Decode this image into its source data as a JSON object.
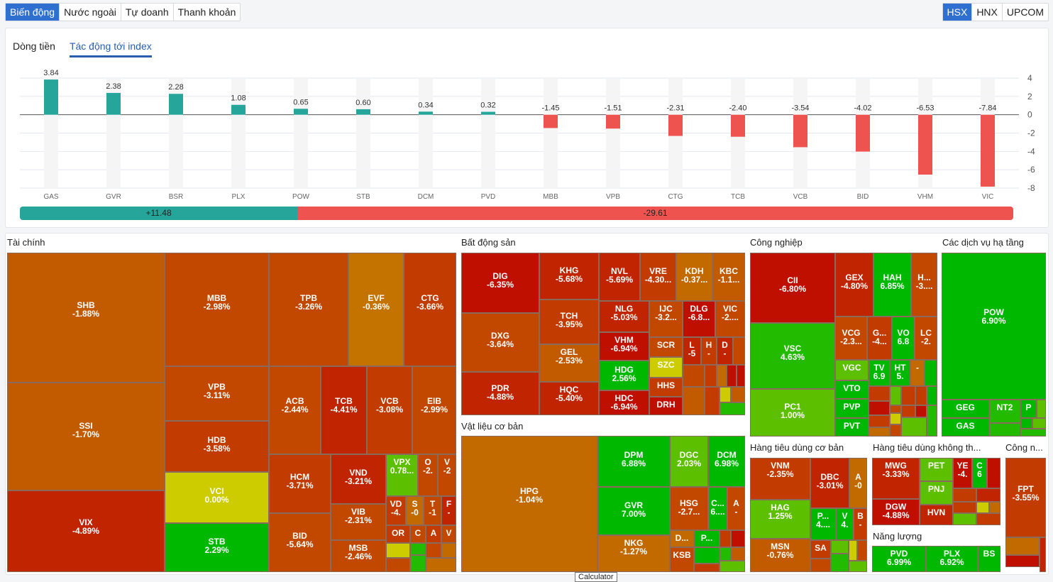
{
  "top_tabs": [
    {
      "label": "Biến động",
      "active": true
    },
    {
      "label": "Nước ngoài",
      "active": false
    },
    {
      "label": "Tự doanh",
      "active": false
    },
    {
      "label": "Thanh khoản",
      "active": false
    }
  ],
  "exchange_tabs": [
    {
      "label": "HSX",
      "active": true
    },
    {
      "label": "HNX",
      "active": false
    },
    {
      "label": "UPCOM",
      "active": false
    }
  ],
  "sub_tabs": [
    {
      "label": "Dòng tiền",
      "active": false
    },
    {
      "label": "Tác động tới index",
      "active": true
    }
  ],
  "colors": {
    "positive": "#26a69a",
    "negative": "#ef5350",
    "accent": "#2f6fd0"
  },
  "chart_data": {
    "type": "bar",
    "title": "Tác động tới index",
    "categories": [
      "GAS",
      "GVR",
      "BSR",
      "PLX",
      "POW",
      "STB",
      "DCM",
      "PVD",
      "MBB",
      "VPB",
      "CTG",
      "TCB",
      "VCB",
      "BID",
      "VHM",
      "VIC"
    ],
    "values": [
      3.84,
      2.38,
      2.28,
      1.08,
      0.65,
      0.6,
      0.34,
      0.32,
      -1.45,
      -1.51,
      -2.31,
      -2.4,
      -3.54,
      -4.02,
      -6.53,
      -7.84
    ],
    "value_labels": [
      "3.84",
      "2.38",
      "2.28",
      "1.08",
      "0.65",
      "0.60",
      "0.34",
      "0.32",
      "-1.45",
      "-1.51",
      "-2.31",
      "-2.40",
      "-3.54",
      "-4.02",
      "-6.53",
      "-7.84"
    ],
    "ylim": [
      -8,
      4
    ],
    "yticks": [
      "4",
      "2",
      "0",
      "-2",
      "-4",
      "-6",
      "-8"
    ],
    "ytick_values": [
      4,
      2,
      0,
      -2,
      -4,
      -6,
      -8
    ],
    "grid": true,
    "y_axis_side": "right"
  },
  "summary": {
    "positive": "+11.48",
    "negative": "-29.61",
    "positive_value": 11.48,
    "negative_value": -29.61
  },
  "sectors": [
    {
      "name": "Tài chính"
    },
    {
      "name": "Bất động sản"
    },
    {
      "name": "Vật liệu cơ bản"
    },
    {
      "name": "Công nghiệp"
    },
    {
      "name": "Các dịch vụ hạ tầng"
    },
    {
      "name": "Hàng tiêu dùng cơ bản"
    },
    {
      "name": "Hàng tiêu dùng không th..."
    },
    {
      "name": "Năng lượng"
    },
    {
      "name": "Công n..."
    }
  ],
  "tiles": [
    {
      "s": "SHB",
      "p": "-1.88%"
    },
    {
      "s": "SSI",
      "p": "-1.70%"
    },
    {
      "s": "VIX",
      "p": "-4.89%"
    },
    {
      "s": "MBB",
      "p": "-2.98%"
    },
    {
      "s": "VPB",
      "p": "-3.11%"
    },
    {
      "s": "HDB",
      "p": "-3.58%"
    },
    {
      "s": "VCI",
      "p": "0.00%"
    },
    {
      "s": "STB",
      "p": "2.29%"
    },
    {
      "s": "TPB",
      "p": "-3.26%"
    },
    {
      "s": "EVF",
      "p": "-0.36%"
    },
    {
      "s": "CTG",
      "p": "-3.66%"
    },
    {
      "s": "ACB",
      "p": "-2.44%"
    },
    {
      "s": "TCB",
      "p": "-4.41%"
    },
    {
      "s": "VCB",
      "p": "-3.08%"
    },
    {
      "s": "EIB",
      "p": "-2.99%"
    },
    {
      "s": "HCM",
      "p": "-3.71%"
    },
    {
      "s": "VND",
      "p": "-3.21%"
    },
    {
      "s": "BID",
      "p": "-5.64%"
    },
    {
      "s": "VIB",
      "p": "-2.31%"
    },
    {
      "s": "MSB",
      "p": "-2.46%"
    },
    {
      "s": "VPX",
      "p": "0.78..."
    },
    {
      "s": "O",
      "p": "-2."
    },
    {
      "s": "V",
      "p": "-2"
    },
    {
      "s": "VD",
      "p": "-4."
    },
    {
      "s": "S",
      "p": "-0"
    },
    {
      "s": "T",
      "p": "-1"
    },
    {
      "s": "F",
      "p": "-"
    },
    {
      "s": "OR",
      "p": ""
    },
    {
      "s": "C",
      "p": ""
    },
    {
      "s": "A",
      "p": ""
    },
    {
      "s": "V",
      "p": ""
    },
    {
      "s": "DIG",
      "p": "-6.35%"
    },
    {
      "s": "DXG",
      "p": "-3.64%"
    },
    {
      "s": "PDR",
      "p": "-4.88%"
    },
    {
      "s": "KHG",
      "p": "-5.68%"
    },
    {
      "s": "TCH",
      "p": "-3.95%"
    },
    {
      "s": "GEL",
      "p": "-2.53%"
    },
    {
      "s": "HQC",
      "p": "-5.40%"
    },
    {
      "s": "NVL",
      "p": "-5.69%"
    },
    {
      "s": "VRE",
      "p": "-4.30..."
    },
    {
      "s": "KDH",
      "p": "-0.37..."
    },
    {
      "s": "KBC",
      "p": "-1.1..."
    },
    {
      "s": "NLG",
      "p": "-5.03%"
    },
    {
      "s": "VHM",
      "p": "-6.94%"
    },
    {
      "s": "HDG",
      "p": "2.56%"
    },
    {
      "s": "HDC",
      "p": "-6.94%"
    },
    {
      "s": "IJC",
      "p": "-3.2..."
    },
    {
      "s": "DLG",
      "p": "-6.8..."
    },
    {
      "s": "VIC",
      "p": "-2...."
    },
    {
      "s": "SCR",
      "p": ""
    },
    {
      "s": "SZC",
      "p": ""
    },
    {
      "s": "HHS",
      "p": ""
    },
    {
      "s": "DRH",
      "p": ""
    },
    {
      "s": "L",
      "p": "-5"
    },
    {
      "s": "H",
      "p": "-"
    },
    {
      "s": "D",
      "p": "-"
    },
    {
      "s": "HPG",
      "p": "-1.04%"
    },
    {
      "s": "DPM",
      "p": "6.88%"
    },
    {
      "s": "GVR",
      "p": "7.00%"
    },
    {
      "s": "NKG",
      "p": "-1.27%"
    },
    {
      "s": "DGC",
      "p": "2.03%"
    },
    {
      "s": "DCM",
      "p": "6.98%"
    },
    {
      "s": "HSG",
      "p": "-2.7..."
    },
    {
      "s": "C...",
      "p": "6...."
    },
    {
      "s": "A",
      "p": "-"
    },
    {
      "s": "D...",
      "p": ""
    },
    {
      "s": "P...",
      "p": ""
    },
    {
      "s": "KSB",
      "p": ""
    },
    {
      "s": "CII",
      "p": "-6.80%"
    },
    {
      "s": "VSC",
      "p": "4.63%"
    },
    {
      "s": "PC1",
      "p": "1.00%"
    },
    {
      "s": "GEX",
      "p": "-4.80%"
    },
    {
      "s": "HAH",
      "p": "6.85%"
    },
    {
      "s": "H...",
      "p": "-3...."
    },
    {
      "s": "VCG",
      "p": "-2.3..."
    },
    {
      "s": "G...",
      "p": "-4..."
    },
    {
      "s": "VO",
      "p": "6.8"
    },
    {
      "s": "LC",
      "p": "-2."
    },
    {
      "s": "VGC",
      "p": ""
    },
    {
      "s": "VTO",
      "p": ""
    },
    {
      "s": "PVP",
      "p": ""
    },
    {
      "s": "PVT",
      "p": ""
    },
    {
      "s": "TV",
      "p": "6.9"
    },
    {
      "s": "HT",
      "p": "5."
    },
    {
      "s": "-",
      "p": ""
    },
    {
      "s": "POW",
      "p": "6.90%"
    },
    {
      "s": "GEG",
      "p": ""
    },
    {
      "s": "GAS",
      "p": ""
    },
    {
      "s": "NT2",
      "p": ""
    },
    {
      "s": "P",
      "p": ""
    },
    {
      "s": "VNM",
      "p": "-2.35%"
    },
    {
      "s": "HAG",
      "p": "1.25%"
    },
    {
      "s": "MSN",
      "p": "-0.76%"
    },
    {
      "s": "DBC",
      "p": "-3.01%"
    },
    {
      "s": "A",
      "p": "-0"
    },
    {
      "s": "P...",
      "p": "4...."
    },
    {
      "s": "V",
      "p": "4."
    },
    {
      "s": "B",
      "p": "-"
    },
    {
      "s": "SA",
      "p": ""
    },
    {
      "s": "MWG",
      "p": "-3.33%"
    },
    {
      "s": "DGW",
      "p": "-4.88%"
    },
    {
      "s": "PET",
      "p": ""
    },
    {
      "s": "PNJ",
      "p": ""
    },
    {
      "s": "HVN",
      "p": ""
    },
    {
      "s": "YE",
      "p": "-4."
    },
    {
      "s": "C",
      "p": "6"
    },
    {
      "s": "PVD",
      "p": "6.99%"
    },
    {
      "s": "PLX",
      "p": "6.92%"
    },
    {
      "s": "BS",
      "p": ""
    },
    {
      "s": "FPT",
      "p": "-3.55%"
    }
  ],
  "tooltip": "Calculator"
}
